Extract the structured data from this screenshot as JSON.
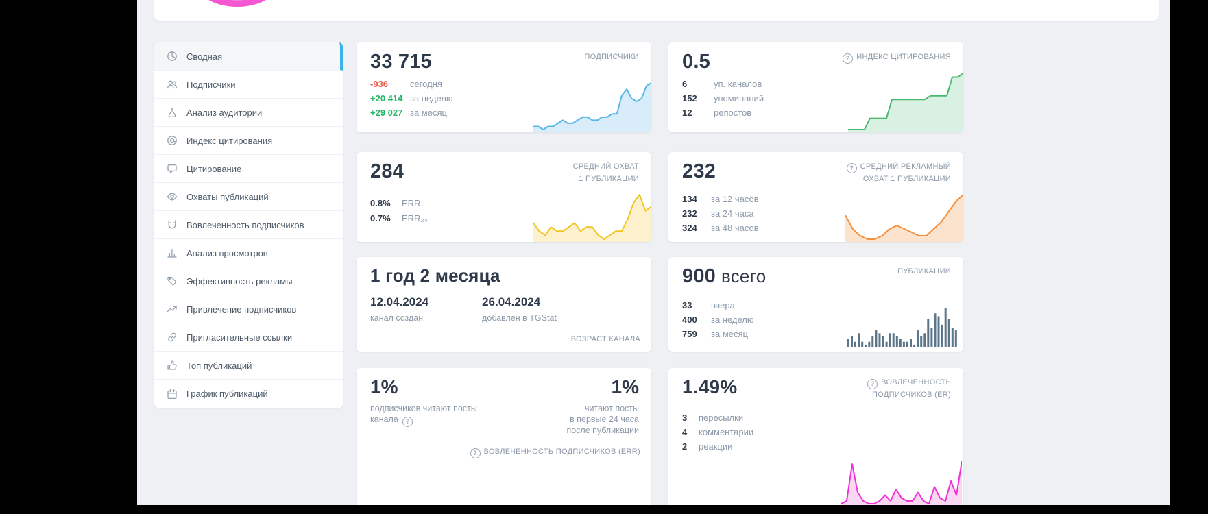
{
  "theme": {
    "accent_blue": "#3ab4e8",
    "negative_red": "#e8604c",
    "positive_green": "#27b768",
    "background": "#eef0f3"
  },
  "header": {
    "chart_icon": "pink-donut-chart-icon"
  },
  "sidebar": {
    "items": [
      {
        "label": "Сводная",
        "icon": "pie-chart-icon",
        "active": true
      },
      {
        "label": "Подписчики",
        "icon": "users-icon",
        "active": false
      },
      {
        "label": "Анализ аудитории",
        "icon": "flask-icon",
        "active": false
      },
      {
        "label": "Индекс цитирования",
        "icon": "at-sign-icon",
        "active": false
      },
      {
        "label": "Цитирование",
        "icon": "quote-bubble-icon",
        "active": false
      },
      {
        "label": "Охваты публикаций",
        "icon": "eye-icon",
        "active": false
      },
      {
        "label": "Вовлеченность подписчиков",
        "icon": "magnet-icon",
        "active": false
      },
      {
        "label": "Анализ просмотров",
        "icon": "bar-chart-icon",
        "active": false
      },
      {
        "label": "Эффективность рекламы",
        "icon": "tag-icon",
        "active": false
      },
      {
        "label": "Привлечение подписчиков",
        "icon": "trend-up-icon",
        "active": false
      },
      {
        "label": "Пригласительные ссылки",
        "icon": "link-icon",
        "active": false
      },
      {
        "label": "Топ публикаций",
        "icon": "thumb-up-icon",
        "active": false
      },
      {
        "label": "График публикаций",
        "icon": "calendar-icon",
        "active": false
      }
    ]
  },
  "cards": {
    "subscribers": {
      "title": "ПОДПИСЧИКИ",
      "value": "33 715",
      "stats": [
        {
          "value": "-936",
          "label": "сегодня",
          "tone": "negative"
        },
        {
          "value": "+20 414",
          "label": "за неделю",
          "tone": "positive"
        },
        {
          "value": "+29 027",
          "label": "за месяц",
          "tone": "positive"
        }
      ],
      "spark": {
        "type": "area",
        "stroke": "#55b6e8",
        "fill": "#d8edf9",
        "points": [
          3,
          3,
          2,
          3,
          3,
          4,
          5,
          4,
          4,
          5,
          6,
          6,
          5,
          5,
          6,
          6,
          7,
          7,
          13,
          15,
          12,
          11,
          12,
          16,
          17
        ]
      }
    },
    "citation_index": {
      "title": "ИНДЕКС ЦИТИРОВАНИЯ",
      "info_icon": "question-circle-icon",
      "value": "0.5",
      "stats": [
        {
          "value": "6",
          "label": "уп. каналов"
        },
        {
          "value": "152",
          "label": "упоминаний"
        },
        {
          "value": "12",
          "label": "репостов"
        }
      ],
      "spark": {
        "type": "area",
        "stroke": "#49b96e",
        "fill": "#d9f1e2",
        "points": [
          1,
          1,
          1,
          1,
          4,
          4,
          4,
          4,
          9,
          9,
          9,
          9,
          9,
          9,
          9,
          10,
          10,
          10,
          10,
          15,
          15,
          16
        ]
      }
    },
    "avg_reach": {
      "title_lines": [
        "СРЕДНИЙ ОХВАТ",
        "1 ПУБЛИКАЦИИ"
      ],
      "value": "284",
      "stats": [
        {
          "value": "0.8%",
          "label": "ERR"
        },
        {
          "value": "0.7%",
          "label": "ERR₂₄"
        }
      ],
      "spark": {
        "type": "area",
        "stroke": "#f2c41d",
        "fill": "#fcf0cd",
        "points": [
          8,
          6,
          5,
          7,
          6,
          6,
          7,
          8,
          6,
          7,
          7,
          5,
          4,
          5,
          6,
          6,
          9,
          13,
          15,
          11,
          12
        ]
      }
    },
    "avg_ad_reach": {
      "title_lines": [
        "СРЕДНИЙ РЕКЛАМНЫЙ",
        "ОХВАТ 1 ПУБЛИКАЦИИ"
      ],
      "info_icon": "question-circle-icon",
      "value": "232",
      "stats": [
        {
          "value": "134",
          "label": "за 12 часов"
        },
        {
          "value": "232",
          "label": "за 24 часа"
        },
        {
          "value": "324",
          "label": "за 48 часов"
        }
      ],
      "spark": {
        "type": "area",
        "stroke": "#f78e39",
        "fill": "#fce3cd",
        "points": [
          10,
          6,
          4,
          3,
          3,
          4,
          6,
          7,
          6,
          5,
          4,
          4,
          6,
          8,
          11,
          14,
          16
        ]
      }
    },
    "channel_age": {
      "value": "1 год 2 месяца",
      "dates": [
        {
          "date": "12.04.2024",
          "label": "канал создан"
        },
        {
          "date": "26.04.2024",
          "label": "добавлен в TGStat"
        }
      ],
      "footer": "ВОЗРАСТ КАНАЛА"
    },
    "publications": {
      "title": "ПУБЛИКАЦИИ",
      "value": "900",
      "value_suffix": "всего",
      "stats": [
        {
          "value": "33",
          "label": "вчера"
        },
        {
          "value": "400",
          "label": "за неделю"
        },
        {
          "value": "759",
          "label": "за месяц"
        }
      ],
      "spark": {
        "type": "bar",
        "color": "#5c7689",
        "points": [
          3,
          4,
          2,
          5,
          2,
          1,
          2,
          4,
          6,
          5,
          4,
          2,
          5,
          5,
          4,
          3,
          2,
          2,
          3,
          1,
          6,
          4,
          5,
          10,
          7,
          12,
          11,
          8,
          14,
          10,
          7,
          6
        ]
      }
    },
    "err": {
      "left": {
        "value": "1%",
        "lines": [
          "подписчиков читают посты",
          "канала"
        ],
        "info_icon": "question-circle-icon"
      },
      "right": {
        "value": "1%",
        "lines": [
          "читают посты",
          "в первые 24 часа",
          "после публикации"
        ]
      },
      "footer": "ВОВЛЕЧЕННОСТЬ ПОДПИСЧИКОВ (ERR)",
      "footer_info_icon": "question-circle-icon"
    },
    "er": {
      "title_lines": [
        "ВОВЛЕЧЕННОСТЬ",
        "ПОДПИСЧИКОВ (ER)"
      ],
      "info_icon": "question-circle-icon",
      "value": "1.49%",
      "stats": [
        {
          "value": "3",
          "label": "пересылки"
        },
        {
          "value": "4",
          "label": "комментарии"
        },
        {
          "value": "2",
          "label": "реакции"
        }
      ],
      "spark": {
        "type": "area",
        "stroke": "#ef2fd8",
        "fill": "#fbd7f1",
        "points": [
          1,
          2,
          15,
          5,
          2,
          1,
          1,
          2,
          4,
          2,
          6,
          3,
          2,
          2,
          5,
          2,
          1,
          7,
          3,
          2,
          9,
          4,
          16
        ]
      }
    }
  }
}
